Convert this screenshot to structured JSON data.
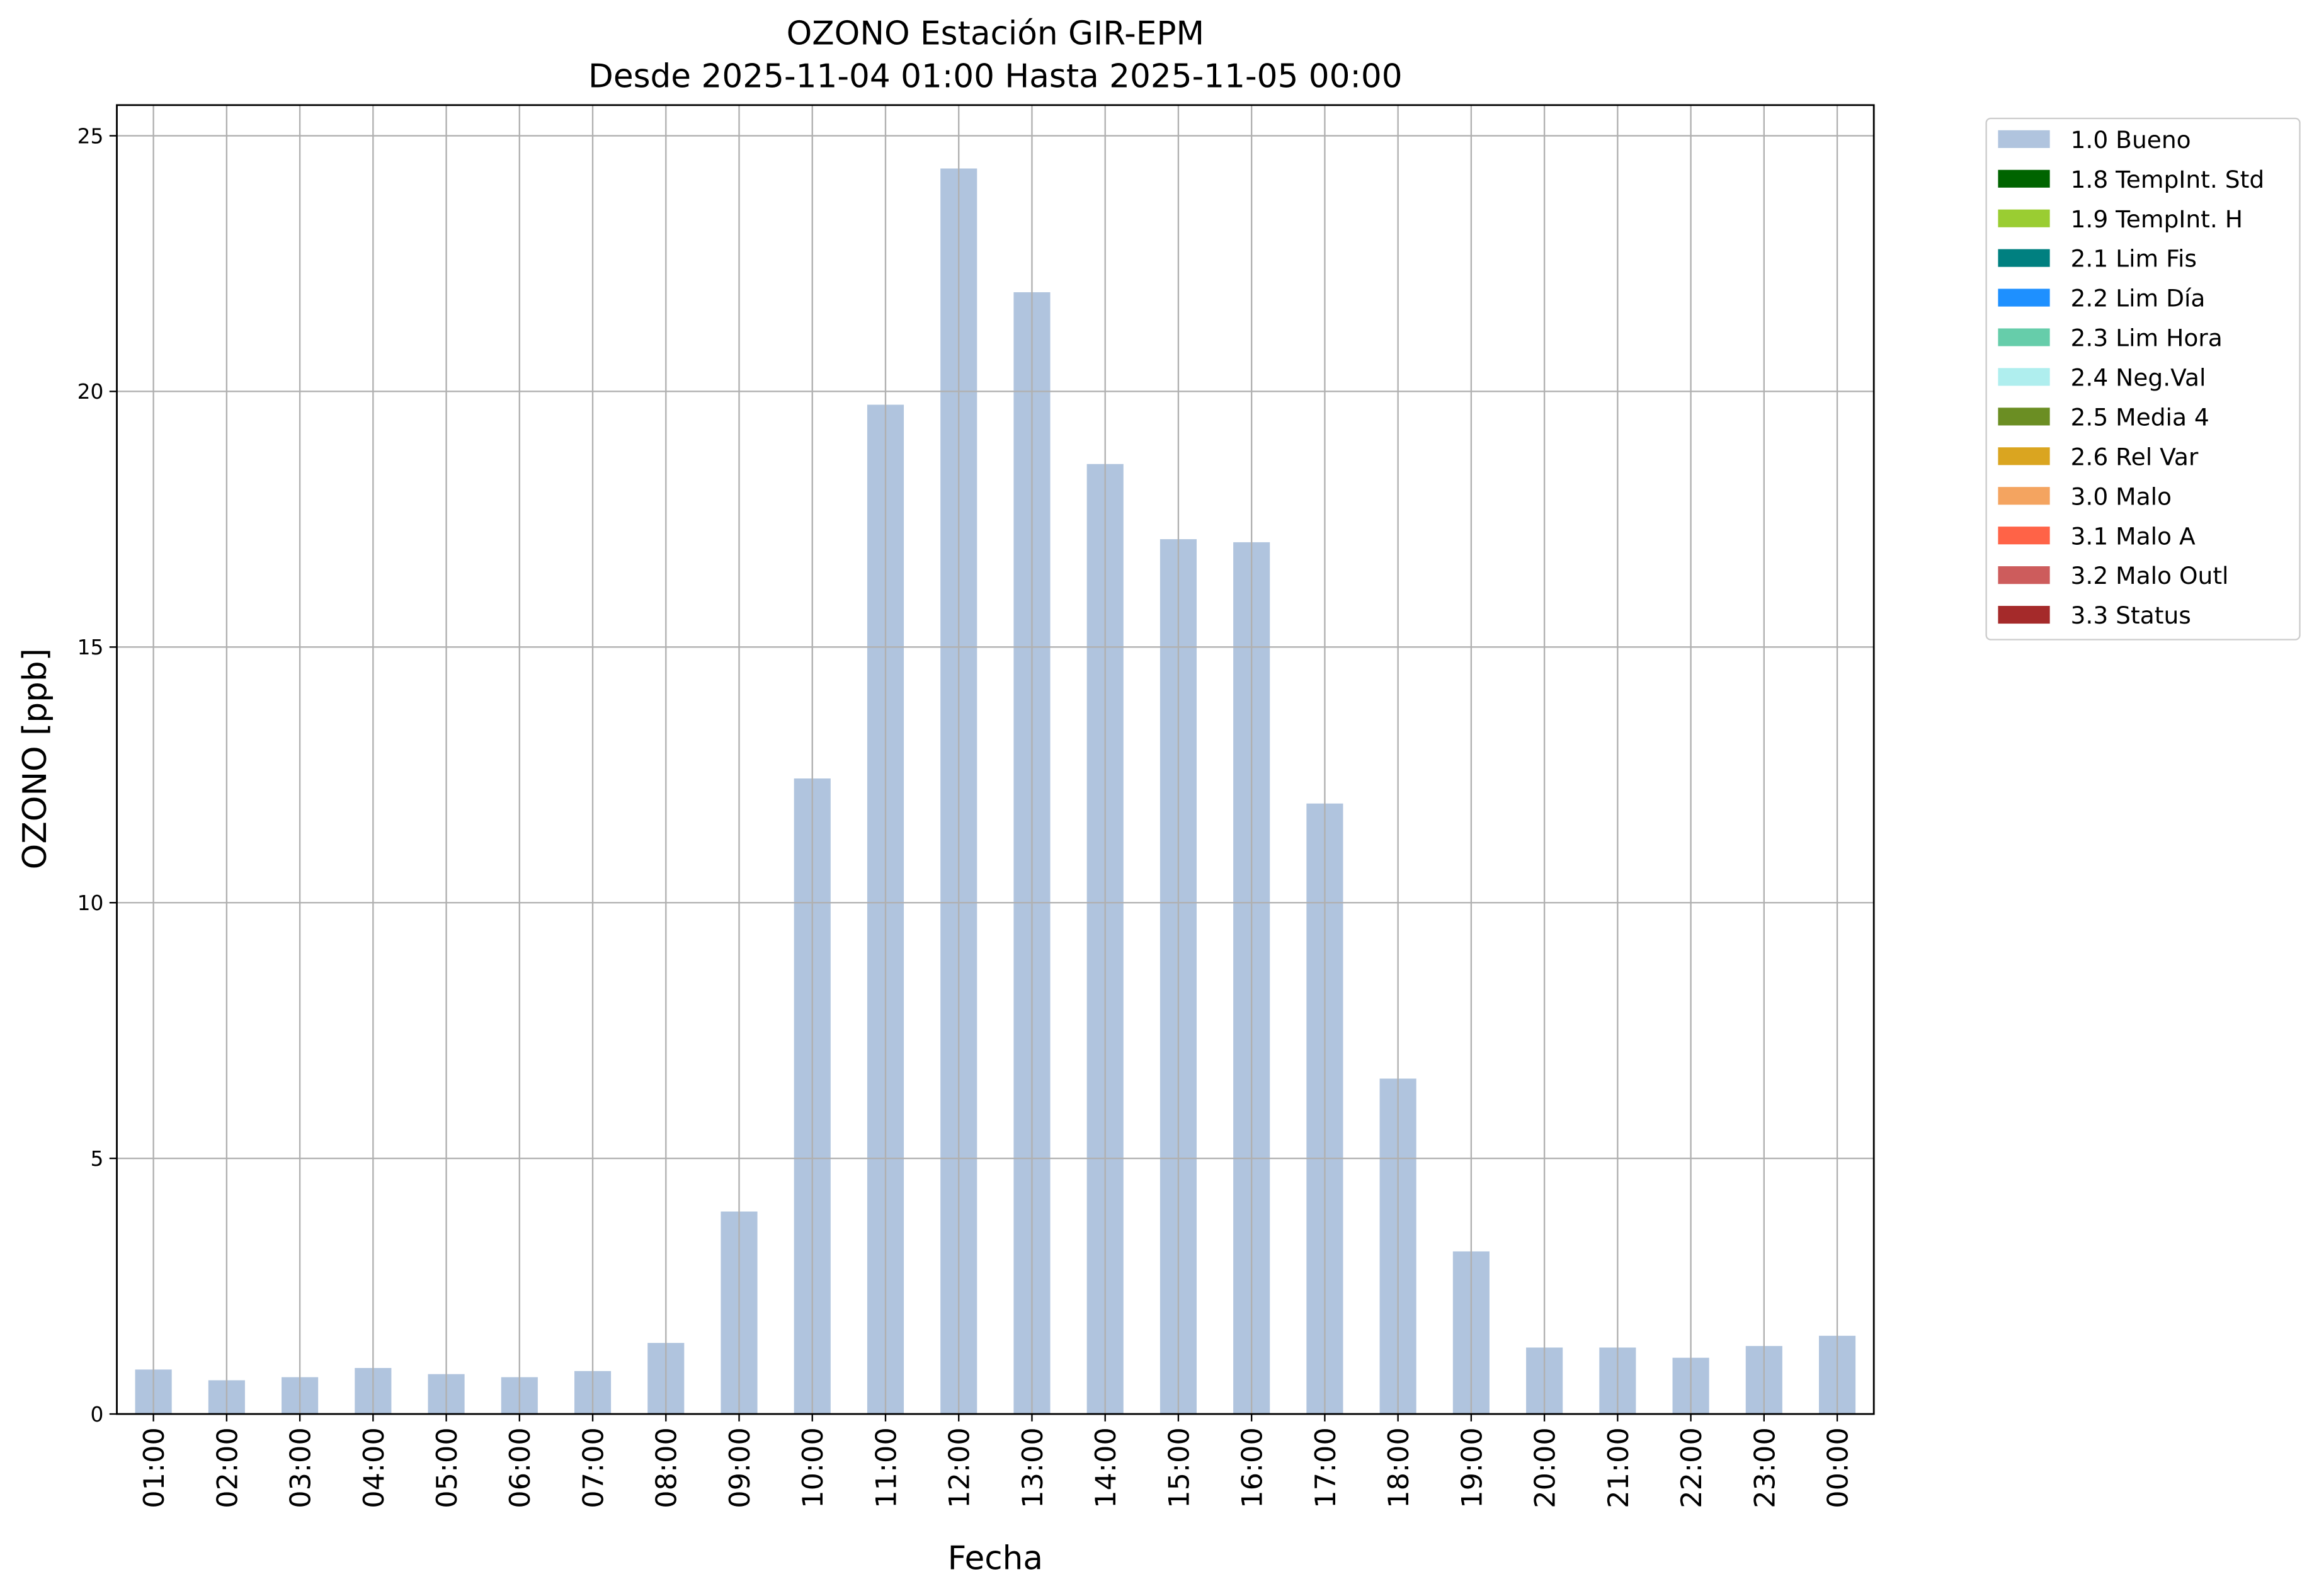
{
  "chart_data": {
    "type": "bar",
    "title": "OZONO Estación GIR-EPM",
    "subtitle": "Desde 2025-11-04 01:00 Hasta 2025-11-05 00:00",
    "x_label": "Fecha",
    "y_label": "OZONO [ppb]",
    "categories": [
      "01:00",
      "02:00",
      "03:00",
      "04:00",
      "05:00",
      "06:00",
      "07:00",
      "08:00",
      "09:00",
      "10:00",
      "11:00",
      "12:00",
      "13:00",
      "14:00",
      "15:00",
      "16:00",
      "17:00",
      "18:00",
      "19:00",
      "20:00",
      "21:00",
      "22:00",
      "23:00",
      "00:00"
    ],
    "series": [
      {
        "name": "1.0 Bueno",
        "color": "#b0c4de",
        "values": [
          0.87,
          0.66,
          0.72,
          0.9,
          0.78,
          0.72,
          0.84,
          1.39,
          3.96,
          12.43,
          19.74,
          24.36,
          21.94,
          18.58,
          17.11,
          17.05,
          11.94,
          6.56,
          3.18,
          1.3,
          1.3,
          1.1,
          1.33,
          1.53
        ]
      }
    ],
    "legend_only": [
      {
        "name": "1.8 TempInt. Std",
        "color": "#006400"
      },
      {
        "name": "1.9 TempInt. H",
        "color": "#9acd32"
      },
      {
        "name": "2.1 Lim Fis",
        "color": "#008080"
      },
      {
        "name": "2.2 Lim Día",
        "color": "#1e90ff"
      },
      {
        "name": "2.3 Lim Hora",
        "color": "#66cdaa"
      },
      {
        "name": "2.4 Neg.Val",
        "color": "#afeeee"
      },
      {
        "name": "2.5 Media 4",
        "color": "#6b8e23"
      },
      {
        "name": "2.6 Rel Var",
        "color": "#daa520"
      },
      {
        "name": "3.0 Malo",
        "color": "#f4a460"
      },
      {
        "name": "3.1 Malo A",
        "color": "#ff6347"
      },
      {
        "name": "3.2 Malo Outl",
        "color": "#cd5c5c"
      },
      {
        "name": "3.3 Status",
        "color": "#a52a2a"
      }
    ],
    "ylim": [
      0,
      25.6
    ],
    "yticks": [
      0,
      5,
      10,
      15,
      20,
      25
    ],
    "grid": true,
    "legend_position": "outside-upper-right"
  }
}
